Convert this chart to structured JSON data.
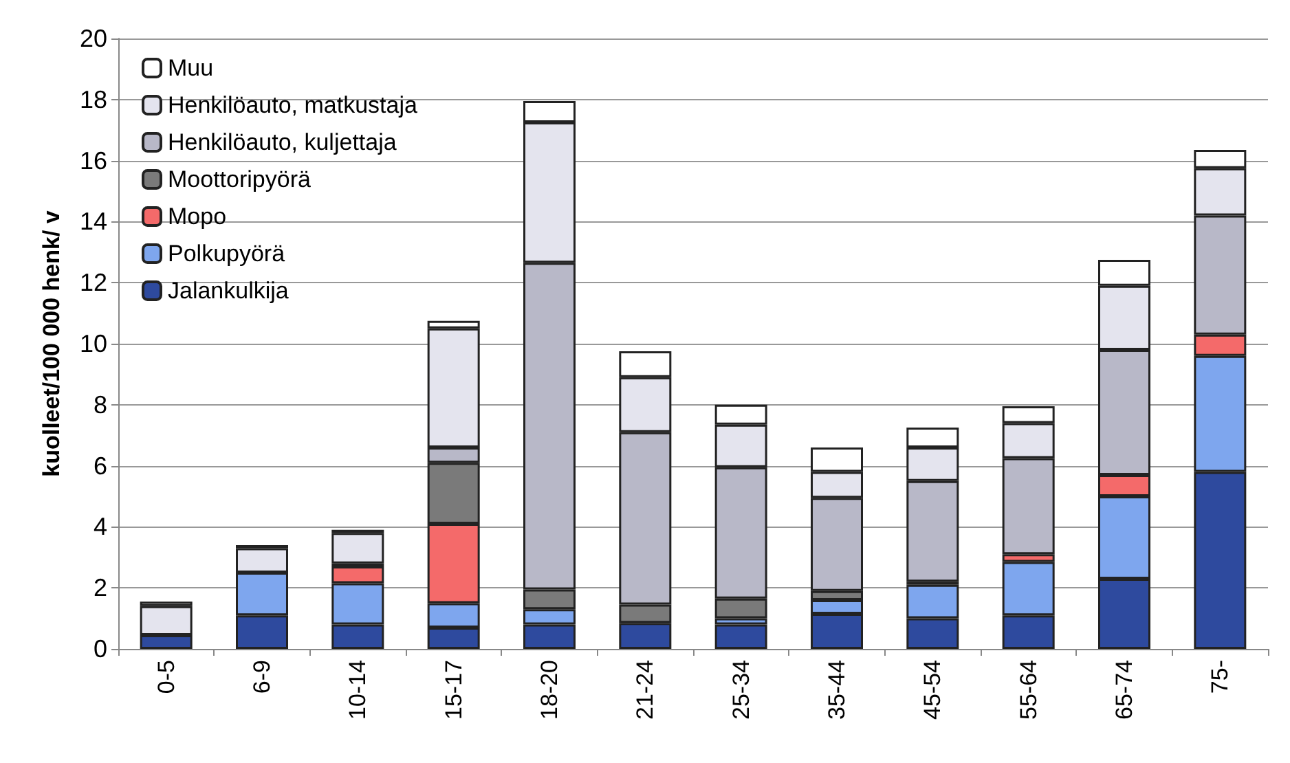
{
  "chart_data": {
    "type": "bar",
    "stacked": true,
    "ylabel": "kuolleet/100 000 henk/ v",
    "categories": [
      "0-5",
      "6-9",
      "10-14",
      "15-17",
      "18-20",
      "21-24",
      "25-34",
      "35-44",
      "45-54",
      "55-64",
      "65-74",
      "75-"
    ],
    "series": [
      {
        "name": "Jalankulkija",
        "color": "#2e4a9e",
        "values": [
          0.45,
          1.1,
          0.8,
          0.7,
          0.8,
          0.85,
          0.8,
          1.15,
          1.0,
          1.1,
          2.3,
          5.8
        ]
      },
      {
        "name": "Polkupyörä",
        "color": "#7ea6ee",
        "values": [
          0,
          1.4,
          1.35,
          0.8,
          0.5,
          0,
          0.2,
          0.45,
          1.1,
          1.75,
          2.7,
          3.8
        ]
      },
      {
        "name": "Mopo",
        "color": "#f46a6a",
        "values": [
          0,
          0,
          0.55,
          2.6,
          0,
          0,
          0,
          0,
          0,
          0.25,
          0.7,
          0.7
        ]
      },
      {
        "name": "Moottoripyörä",
        "color": "#7a7a7a",
        "values": [
          0,
          0,
          0.1,
          2.0,
          0.65,
          0.6,
          0.65,
          0.3,
          0.1,
          0,
          0,
          0
        ]
      },
      {
        "name": "Henkilöauto, kuljettaja",
        "color": "#b8b8c8",
        "values": [
          0,
          0,
          0,
          0.5,
          10.7,
          5.65,
          4.3,
          3.05,
          3.3,
          3.15,
          4.1,
          3.9
        ]
      },
      {
        "name": "Henkilöauto, matkustaja",
        "color": "#e4e4ee",
        "values": [
          0.95,
          0.8,
          1.0,
          3.9,
          4.6,
          1.8,
          1.4,
          0.85,
          1.1,
          1.15,
          2.1,
          1.55
        ]
      },
      {
        "name": "Muu",
        "color": "#ffffff",
        "values": [
          0.15,
          0.1,
          0.1,
          0.25,
          0.7,
          0.85,
          0.65,
          0.8,
          0.65,
          0.55,
          0.85,
          0.6
        ]
      }
    ],
    "ylim": [
      0,
      20
    ],
    "yticks": [
      0,
      2,
      4,
      6,
      8,
      10,
      12,
      14,
      16,
      18,
      20
    ],
    "grid": "y",
    "legend": "top left"
  }
}
